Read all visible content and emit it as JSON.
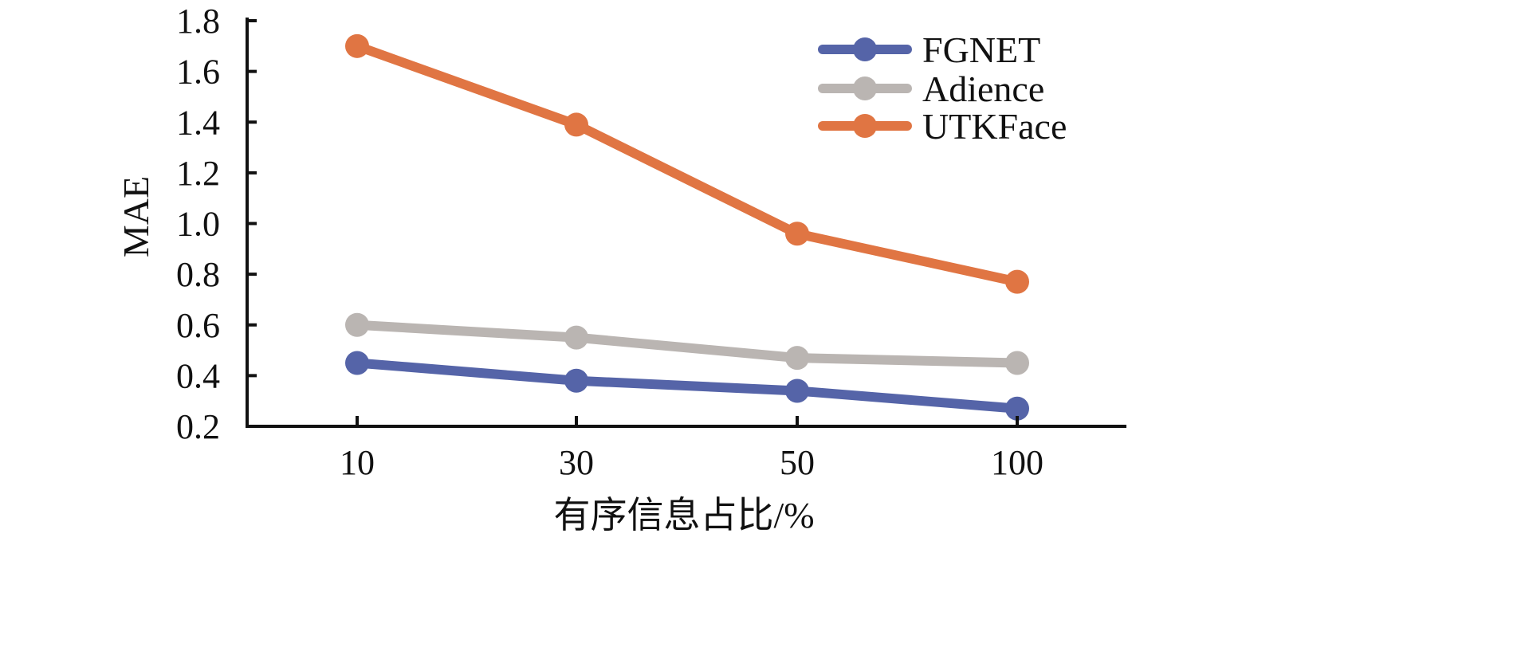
{
  "chart_data": {
    "type": "line",
    "categories": [
      "10",
      "30",
      "50",
      "100"
    ],
    "xlabel": "有序信息占比/%",
    "ylabel": "MAE",
    "ylim": [
      0.2,
      1.8
    ],
    "yticks": [
      "0.2",
      "0.4",
      "0.6",
      "0.8",
      "1.0",
      "1.2",
      "1.4",
      "1.6",
      "1.8"
    ],
    "grid": false,
    "legend_position": "top-right",
    "series": [
      {
        "name": "FGNET",
        "color": "#5564a8",
        "values": [
          0.45,
          0.38,
          0.34,
          0.27
        ]
      },
      {
        "name": "Adience",
        "color": "#bab5b2",
        "values": [
          0.6,
          0.55,
          0.47,
          0.45
        ]
      },
      {
        "name": "UTKFace",
        "color": "#e07543",
        "values": [
          1.7,
          1.39,
          0.96,
          0.77
        ]
      }
    ]
  }
}
